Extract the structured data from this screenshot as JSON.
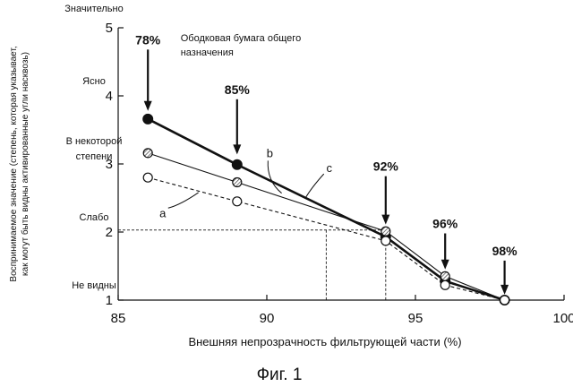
{
  "chart_data": {
    "type": "line",
    "title": "",
    "caption": "Фиг. 1",
    "xlabel": "Внешняя непрозрачность фильтрующей части (%)",
    "ylabel_lines": [
      "Воспринимаемое значение (степень, которая указывает,",
      "как могут быть видны активированные угли насквозь)"
    ],
    "xlim": [
      85,
      100
    ],
    "ylim": [
      1,
      5
    ],
    "xticks": [
      "85",
      "90",
      "95",
      "100"
    ],
    "yticks": [
      "1",
      "2",
      "3",
      "4",
      "5"
    ],
    "y_qualitative_labels": [
      {
        "y": 5,
        "lines": [
          "Значительно"
        ]
      },
      {
        "y": 4,
        "lines": [
          "Ясно"
        ]
      },
      {
        "y": 3,
        "lines": [
          "В некоторой",
          "степени"
        ]
      },
      {
        "y": 2,
        "lines": [
          "Слабо"
        ]
      },
      {
        "y": 1,
        "lines": [
          "Не видны"
        ]
      }
    ],
    "series": [
      {
        "name": "c",
        "marker": "filled",
        "line": "solid-thick",
        "x": [
          86,
          89,
          94,
          96,
          98
        ],
        "y": [
          3.66,
          2.99,
          1.93,
          1.28,
          1.0
        ]
      },
      {
        "name": "b",
        "marker": "hatched",
        "line": "solid-thin",
        "x": [
          86,
          89,
          94,
          96,
          98
        ],
        "y": [
          3.16,
          2.73,
          2.01,
          1.35,
          1.0
        ]
      },
      {
        "name": "a",
        "marker": "open",
        "line": "dashed",
        "x": [
          86,
          89,
          94,
          96,
          98
        ],
        "y": [
          2.8,
          2.45,
          1.87,
          1.22,
          1.0
        ]
      }
    ],
    "series_labels": [
      {
        "text": "a",
        "x": 86.5,
        "y": 2.22
      },
      {
        "text": "b",
        "x": 90.1,
        "y": 3.1
      },
      {
        "text": "c",
        "x": 92.1,
        "y": 2.88
      }
    ],
    "opacity_annotations": [
      {
        "text": "78%",
        "x": 86,
        "y_top": 4.68,
        "y_bottom": 3.78
      },
      {
        "text": "85%",
        "x": 89,
        "y_top": 3.95,
        "y_bottom": 3.14
      },
      {
        "text": "92%",
        "x": 94,
        "y_top": 2.82,
        "y_bottom": 2.11
      },
      {
        "text": "96%",
        "x": 96,
        "y_top": 1.98,
        "y_bottom": 1.45
      },
      {
        "text": "98%",
        "x": 98,
        "y_top": 1.58,
        "y_bottom": 1.08
      }
    ],
    "note": {
      "lines": [
        "Ободковая бумага общего",
        "назначения"
      ],
      "x": 87.1,
      "y": 4.8
    },
    "reference_lines": {
      "y": 2.03,
      "x": [
        92,
        94
      ]
    }
  }
}
